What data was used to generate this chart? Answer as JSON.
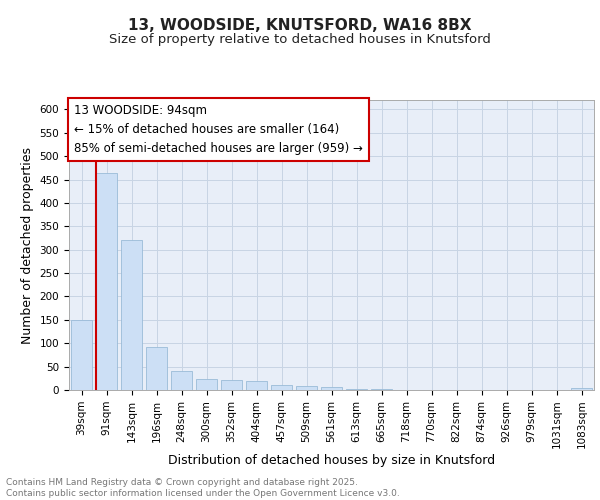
{
  "title_line1": "13, WOODSIDE, KNUTSFORD, WA16 8BX",
  "title_line2": "Size of property relative to detached houses in Knutsford",
  "xlabel": "Distribution of detached houses by size in Knutsford",
  "ylabel": "Number of detached properties",
  "categories": [
    "39sqm",
    "91sqm",
    "143sqm",
    "196sqm",
    "248sqm",
    "300sqm",
    "352sqm",
    "404sqm",
    "457sqm",
    "509sqm",
    "561sqm",
    "613sqm",
    "665sqm",
    "718sqm",
    "770sqm",
    "822sqm",
    "874sqm",
    "926sqm",
    "979sqm",
    "1031sqm",
    "1083sqm"
  ],
  "values": [
    150,
    463,
    320,
    93,
    40,
    23,
    22,
    20,
    11,
    8,
    7,
    2,
    2,
    0,
    0,
    1,
    0,
    0,
    0,
    0,
    4
  ],
  "bar_color": "#ccdff5",
  "bar_edge_color": "#9abbd8",
  "grid_color": "#c8d4e4",
  "background_color": "#e8eef8",
  "vline_color": "#cc0000",
  "vline_x": 0.575,
  "annotation_text": "13 WOODSIDE: 94sqm\n← 15% of detached houses are smaller (164)\n85% of semi-detached houses are larger (959) →",
  "footer_line1": "Contains HM Land Registry data © Crown copyright and database right 2025.",
  "footer_line2": "Contains public sector information licensed under the Open Government Licence v3.0.",
  "ylim": [
    0,
    620
  ],
  "yticks": [
    0,
    50,
    100,
    150,
    200,
    250,
    300,
    350,
    400,
    450,
    500,
    550,
    600
  ],
  "title_fontsize": 11,
  "subtitle_fontsize": 9.5,
  "tick_fontsize": 7.5,
  "label_fontsize": 9,
  "annotation_fontsize": 8.5,
  "footer_fontsize": 6.5
}
